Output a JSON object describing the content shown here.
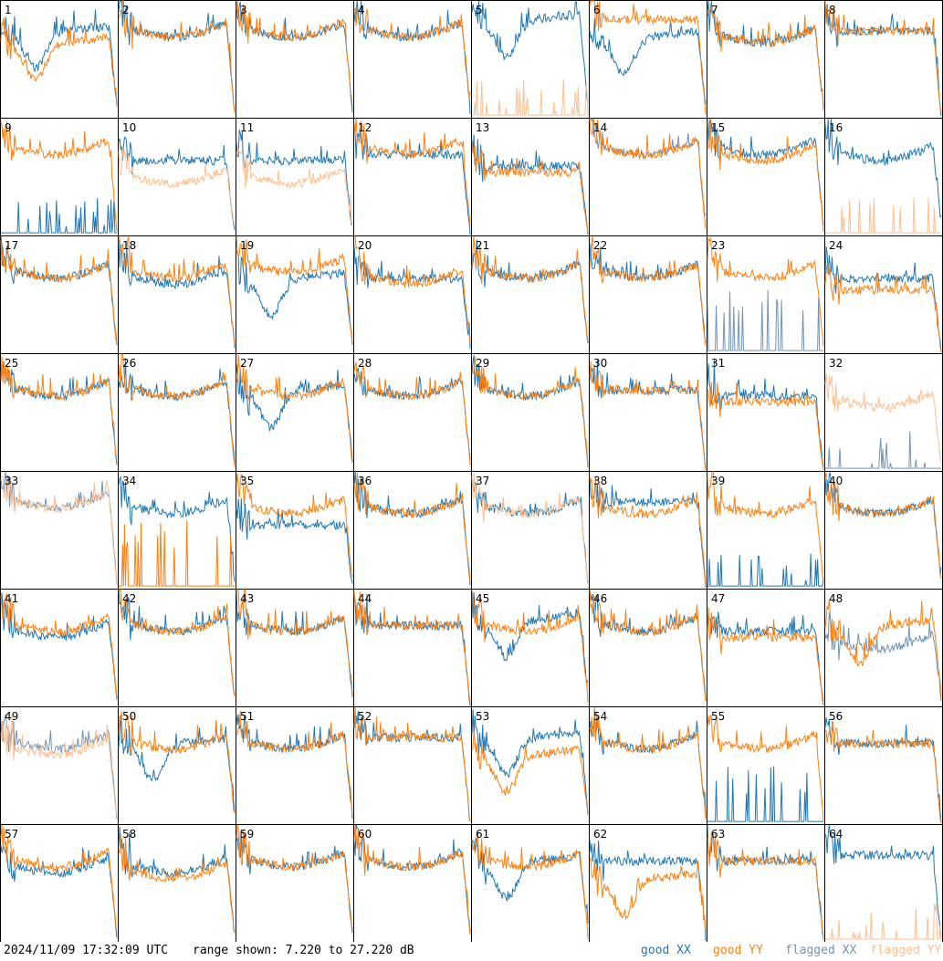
{
  "footer": {
    "timestamp": "2024/11/09 17:32:09 UTC",
    "range_text": "range shown: 7.220 to 27.220 dB",
    "legend": {
      "good_xx": "good XX",
      "good_yy": "good YY",
      "flagged_xx": "flagged XX",
      "flagged_yy": "flagged YY"
    }
  },
  "colors": {
    "good_xx": "#1f77b4",
    "good_yy": "#ff7f0e",
    "flagged_xx": "#7393b3",
    "flagged_yy": "#ffbf90",
    "grid_line": "#000000"
  },
  "chart_data": {
    "type": "line",
    "layout": "8x8 small multiples",
    "y_unit": "dB",
    "ylim": [
      7.22,
      27.22
    ],
    "grid": false,
    "legend_position": "bottom-right",
    "series_names": [
      "good XX",
      "good YY",
      "flagged XX",
      "flagged YY"
    ],
    "panels": [
      {
        "label": "1",
        "xx": {
          "shape": "dip",
          "level": 21,
          "flag": false
        },
        "yy": {
          "shape": "dip",
          "level": 19,
          "flag": false
        }
      },
      {
        "label": "2",
        "xx": {
          "shape": "typ",
          "level": 23,
          "flag": false
        },
        "yy": {
          "shape": "typ",
          "level": 23,
          "flag": false
        }
      },
      {
        "label": "3",
        "xx": {
          "shape": "typ",
          "level": 23,
          "flag": false
        },
        "yy": {
          "shape": "typ",
          "level": 23,
          "flag": false
        }
      },
      {
        "label": "4",
        "xx": {
          "shape": "typ",
          "level": 23,
          "flag": false
        },
        "yy": {
          "shape": "typ",
          "level": 23,
          "flag": false
        }
      },
      {
        "label": "5",
        "xx": {
          "shape": "dip",
          "level": 23,
          "flag": false
        },
        "yy": {
          "shape": "spikes",
          "level": 8,
          "flag": true
        }
      },
      {
        "label": "6",
        "xx": {
          "shape": "dip",
          "level": 20,
          "flag": false
        },
        "yy": {
          "shape": "flat",
          "level": 24,
          "flag": false
        }
      },
      {
        "label": "7",
        "xx": {
          "shape": "typ",
          "level": 22,
          "flag": false
        },
        "yy": {
          "shape": "typ",
          "level": 22,
          "flag": false
        }
      },
      {
        "label": "8",
        "xx": {
          "shape": "flat",
          "level": 22,
          "flag": false
        },
        "yy": {
          "shape": "flat",
          "level": 22,
          "flag": false
        }
      },
      {
        "label": "9",
        "xx": {
          "shape": "spikes",
          "level": 8,
          "flag": false
        },
        "yy": {
          "shape": "typ",
          "level": 23,
          "flag": false
        }
      },
      {
        "label": "10",
        "xx": {
          "shape": "flat",
          "level": 20,
          "flag": false
        },
        "yy": {
          "shape": "typ",
          "level": 18,
          "flag": true
        }
      },
      {
        "label": "11",
        "xx": {
          "shape": "flat",
          "level": 20,
          "flag": false
        },
        "yy": {
          "shape": "typ",
          "level": 18,
          "flag": true
        }
      },
      {
        "label": "12",
        "xx": {
          "shape": "flat",
          "level": 21,
          "flag": false
        },
        "yy": {
          "shape": "typ",
          "level": 23,
          "flag": false
        }
      },
      {
        "label": "13",
        "xx": {
          "shape": "flat",
          "level": 19,
          "flag": false
        },
        "yy": {
          "shape": "flat",
          "level": 18,
          "flag": false
        }
      },
      {
        "label": "14",
        "xx": {
          "shape": "typ",
          "level": 23,
          "flag": true
        },
        "yy": {
          "shape": "typ",
          "level": 23,
          "flag": false
        }
      },
      {
        "label": "15",
        "xx": {
          "shape": "typ",
          "level": 23,
          "flag": false
        },
        "yy": {
          "shape": "typ",
          "level": 22,
          "flag": false
        }
      },
      {
        "label": "16",
        "xx": {
          "shape": "typ",
          "level": 22,
          "flag": false
        },
        "yy": {
          "shape": "spikes",
          "level": 8,
          "flag": true
        }
      },
      {
        "label": "17",
        "xx": {
          "shape": "typ",
          "level": 22,
          "flag": false
        },
        "yy": {
          "shape": "typ",
          "level": 22,
          "flag": false
        }
      },
      {
        "label": "18",
        "xx": {
          "shape": "typ",
          "level": 21,
          "flag": false
        },
        "yy": {
          "shape": "typ",
          "level": 22,
          "flag": false
        }
      },
      {
        "label": "19",
        "xx": {
          "shape": "dip",
          "level": 19,
          "flag": false
        },
        "yy": {
          "shape": "typ",
          "level": 23,
          "flag": false
        }
      },
      {
        "label": "20",
        "xx": {
          "shape": "flat",
          "level": 20,
          "flag": false
        },
        "yy": {
          "shape": "typ",
          "level": 21,
          "flag": false
        }
      },
      {
        "label": "21",
        "xx": {
          "shape": "typ",
          "level": 22,
          "flag": false
        },
        "yy": {
          "shape": "typ",
          "level": 22,
          "flag": false
        }
      },
      {
        "label": "22",
        "xx": {
          "shape": "typ",
          "level": 22,
          "flag": false
        },
        "yy": {
          "shape": "typ",
          "level": 22,
          "flag": false
        }
      },
      {
        "label": "23",
        "xx": {
          "shape": "spikes",
          "level": 12,
          "flag": true
        },
        "yy": {
          "shape": "typ",
          "level": 22,
          "flag": false
        }
      },
      {
        "label": "24",
        "xx": {
          "shape": "flat",
          "level": 20,
          "flag": false
        },
        "yy": {
          "shape": "flat",
          "level": 18,
          "flag": false
        }
      },
      {
        "label": "25",
        "xx": {
          "shape": "typ",
          "level": 22,
          "flag": false
        },
        "yy": {
          "shape": "typ",
          "level": 22,
          "flag": false
        }
      },
      {
        "label": "26",
        "xx": {
          "shape": "typ",
          "level": 22,
          "flag": false
        },
        "yy": {
          "shape": "typ",
          "level": 22,
          "flag": false
        }
      },
      {
        "label": "27",
        "xx": {
          "shape": "dip",
          "level": 20,
          "flag": false
        },
        "yy": {
          "shape": "typ",
          "level": 22,
          "flag": false
        }
      },
      {
        "label": "28",
        "xx": {
          "shape": "typ",
          "level": 22,
          "flag": false
        },
        "yy": {
          "shape": "typ",
          "level": 22,
          "flag": false
        }
      },
      {
        "label": "29",
        "xx": {
          "shape": "typ",
          "level": 22,
          "flag": false
        },
        "yy": {
          "shape": "typ",
          "level": 22,
          "flag": false
        }
      },
      {
        "label": "30",
        "xx": {
          "shape": "flat",
          "level": 21,
          "flag": false
        },
        "yy": {
          "shape": "flat",
          "level": 21,
          "flag": false
        }
      },
      {
        "label": "31",
        "xx": {
          "shape": "flat",
          "level": 20,
          "flag": false
        },
        "yy": {
          "shape": "flat",
          "level": 19,
          "flag": false
        }
      },
      {
        "label": "32",
        "xx": {
          "shape": "spikes",
          "level": 8,
          "flag": true
        },
        "yy": {
          "shape": "typ",
          "level": 20,
          "flag": true
        }
      },
      {
        "label": "33",
        "xx": {
          "shape": "typ",
          "level": 23,
          "flag": true
        },
        "yy": {
          "shape": "typ",
          "level": 23,
          "flag": true
        }
      },
      {
        "label": "34",
        "xx": {
          "shape": "typ",
          "level": 22,
          "flag": false
        },
        "yy": {
          "shape": "spikes",
          "level": 13,
          "flag": false
        }
      },
      {
        "label": "35",
        "xx": {
          "shape": "flat",
          "level": 18,
          "flag": false
        },
        "yy": {
          "shape": "typ",
          "level": 22,
          "flag": false
        }
      },
      {
        "label": "36",
        "xx": {
          "shape": "typ",
          "level": 22,
          "flag": false
        },
        "yy": {
          "shape": "typ",
          "level": 22,
          "flag": false
        }
      },
      {
        "label": "37",
        "xx": {
          "shape": "typ",
          "level": 22,
          "flag": false
        },
        "yy": {
          "shape": "typ",
          "level": 22,
          "flag": true
        }
      },
      {
        "label": "38",
        "xx": {
          "shape": "flat",
          "level": 22,
          "flag": false
        },
        "yy": {
          "shape": "typ",
          "level": 22,
          "flag": false
        }
      },
      {
        "label": "39",
        "xx": {
          "shape": "spikes",
          "level": 8,
          "flag": false
        },
        "yy": {
          "shape": "typ",
          "level": 22,
          "flag": false
        }
      },
      {
        "label": "40",
        "xx": {
          "shape": "typ",
          "level": 22,
          "flag": false
        },
        "yy": {
          "shape": "typ",
          "level": 22,
          "flag": false
        }
      },
      {
        "label": "41",
        "xx": {
          "shape": "typ",
          "level": 21,
          "flag": false
        },
        "yy": {
          "shape": "typ",
          "level": 22,
          "flag": false
        }
      },
      {
        "label": "42",
        "xx": {
          "shape": "typ",
          "level": 22,
          "flag": false
        },
        "yy": {
          "shape": "typ",
          "level": 22,
          "flag": false
        }
      },
      {
        "label": "43",
        "xx": {
          "shape": "typ",
          "level": 22,
          "flag": false
        },
        "yy": {
          "shape": "typ",
          "level": 22,
          "flag": false
        }
      },
      {
        "label": "44",
        "xx": {
          "shape": "flat",
          "level": 21,
          "flag": false
        },
        "yy": {
          "shape": "flat",
          "level": 21,
          "flag": false
        }
      },
      {
        "label": "45",
        "xx": {
          "shape": "dip",
          "level": 21,
          "flag": false
        },
        "yy": {
          "shape": "typ",
          "level": 22,
          "flag": false
        }
      },
      {
        "label": "46",
        "xx": {
          "shape": "typ",
          "level": 22,
          "flag": false
        },
        "yy": {
          "shape": "typ",
          "level": 22,
          "flag": false
        }
      },
      {
        "label": "47",
        "xx": {
          "shape": "flat",
          "level": 20,
          "flag": false
        },
        "yy": {
          "shape": "flat",
          "level": 19,
          "flag": false
        }
      },
      {
        "label": "48",
        "xx": {
          "shape": "typ",
          "level": 19,
          "flag": true
        },
        "yy": {
          "shape": "dip",
          "level": 20,
          "flag": false
        }
      },
      {
        "label": "49",
        "xx": {
          "shape": "typ",
          "level": 22,
          "flag": true
        },
        "yy": {
          "shape": "typ",
          "level": 21,
          "flag": true
        }
      },
      {
        "label": "50",
        "xx": {
          "shape": "dip",
          "level": 20,
          "flag": false
        },
        "yy": {
          "shape": "typ",
          "level": 22,
          "flag": false
        }
      },
      {
        "label": "51",
        "xx": {
          "shape": "typ",
          "level": 22,
          "flag": false
        },
        "yy": {
          "shape": "typ",
          "level": 22,
          "flag": false
        }
      },
      {
        "label": "52",
        "xx": {
          "shape": "flat",
          "level": 22,
          "flag": false
        },
        "yy": {
          "shape": "flat",
          "level": 22,
          "flag": false
        }
      },
      {
        "label": "53",
        "xx": {
          "shape": "dip",
          "level": 21,
          "flag": false
        },
        "yy": {
          "shape": "dip",
          "level": 18,
          "flag": false
        }
      },
      {
        "label": "54",
        "xx": {
          "shape": "typ",
          "level": 22,
          "flag": false
        },
        "yy": {
          "shape": "typ",
          "level": 22,
          "flag": false
        }
      },
      {
        "label": "55",
        "xx": {
          "shape": "spikes",
          "level": 12,
          "flag": false
        },
        "yy": {
          "shape": "typ",
          "level": 22,
          "flag": false
        }
      },
      {
        "label": "56",
        "xx": {
          "shape": "flat",
          "level": 21,
          "flag": false
        },
        "yy": {
          "shape": "flat",
          "level": 21,
          "flag": false
        }
      },
      {
        "label": "57",
        "xx": {
          "shape": "typ",
          "level": 21,
          "flag": false
        },
        "yy": {
          "shape": "typ",
          "level": 22,
          "flag": false
        }
      },
      {
        "label": "58",
        "xx": {
          "shape": "typ",
          "level": 21,
          "flag": false
        },
        "yy": {
          "shape": "typ",
          "level": 20,
          "flag": false
        }
      },
      {
        "label": "59",
        "xx": {
          "shape": "typ",
          "level": 22,
          "flag": false
        },
        "yy": {
          "shape": "typ",
          "level": 22,
          "flag": false
        }
      },
      {
        "label": "60",
        "xx": {
          "shape": "typ",
          "level": 22,
          "flag": false
        },
        "yy": {
          "shape": "typ",
          "level": 22,
          "flag": false
        }
      },
      {
        "label": "61",
        "xx": {
          "shape": "dip",
          "level": 20,
          "flag": false
        },
        "yy": {
          "shape": "typ",
          "level": 22,
          "flag": false
        }
      },
      {
        "label": "62",
        "xx": {
          "shape": "flat",
          "level": 21,
          "flag": false
        },
        "yy": {
          "shape": "dip",
          "level": 17,
          "flag": false
        }
      },
      {
        "label": "63",
        "xx": {
          "shape": "flat",
          "level": 21,
          "flag": false
        },
        "yy": {
          "shape": "flat",
          "level": 21,
          "flag": false
        }
      },
      {
        "label": "64",
        "xx": {
          "shape": "flat",
          "level": 22,
          "flag": false
        },
        "yy": {
          "shape": "spikes",
          "level": 8,
          "flag": true
        }
      }
    ]
  }
}
